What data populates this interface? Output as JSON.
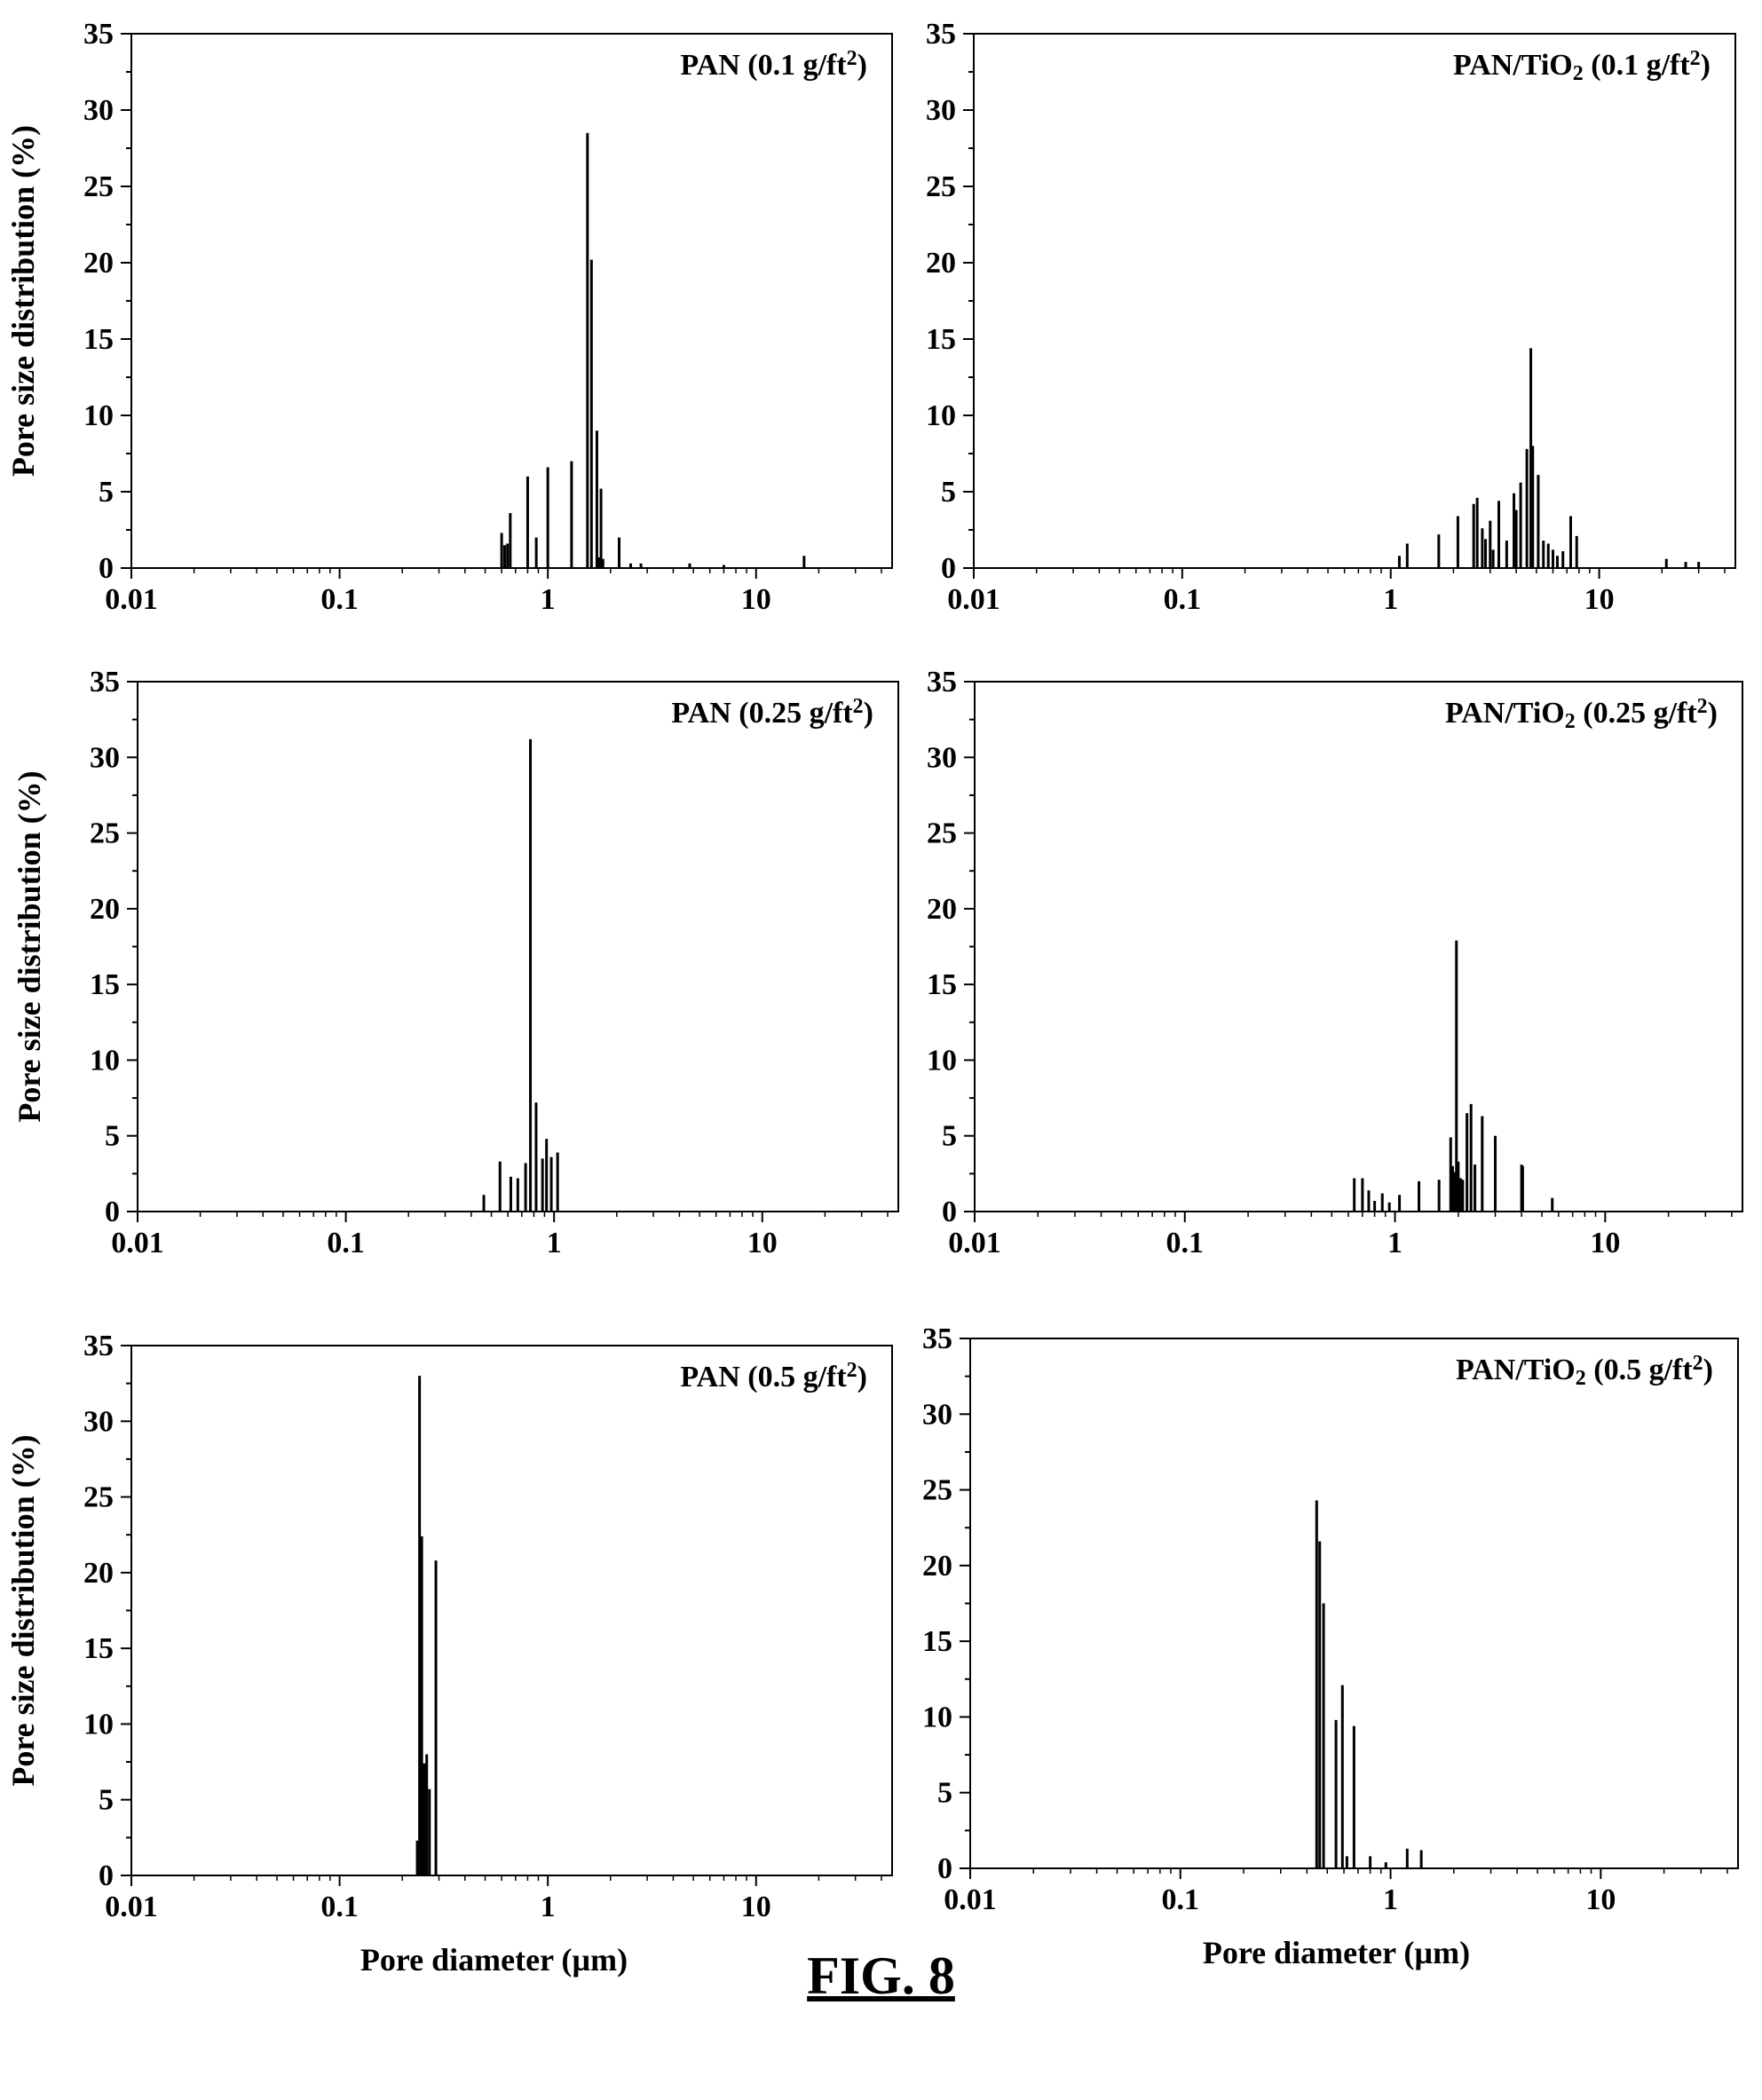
{
  "figure_caption": "FIG. 8",
  "chart_data": [
    {
      "type": "bar",
      "title": "PAN (0.1 g/ft²)",
      "title_parts": [
        "PAN (0.1 g/ft",
        "2",
        ")"
      ],
      "xlabel": "",
      "ylabel": "Pore size distribution (%)",
      "x_scale": "log",
      "xlim": [
        0.01,
        45
      ],
      "ylim": [
        0,
        35
      ],
      "yticks": [
        "0",
        "5",
        "10",
        "15",
        "20",
        "25",
        "30",
        "35"
      ],
      "xticks": [
        "0.01",
        "0.1",
        "1",
        "10"
      ],
      "bar_color": "#000000",
      "grid": false,
      "x": [
        0.6,
        0.62,
        0.64,
        0.66,
        0.8,
        0.88,
        1.0,
        1.3,
        1.55,
        1.62,
        1.72,
        1.76,
        1.8,
        1.84,
        2.2,
        2.5,
        2.8,
        4.8,
        7,
        17
      ],
      "values": [
        2.3,
        1.5,
        1.6,
        3.6,
        6,
        2,
        6.6,
        7,
        28.5,
        20.2,
        9,
        0.7,
        5.2,
        0.6,
        2,
        0.3,
        0.3,
        0.3,
        0.2,
        0.8
      ]
    },
    {
      "type": "bar",
      "title": "PAN/TiO₂ (0.1 g/ft²)",
      "title_parts": [
        "PAN/TiO",
        "2",
        " (0.1 g/ft",
        "2",
        ")"
      ],
      "xlabel": "",
      "ylabel": "",
      "x_scale": "log",
      "xlim": [
        0.01,
        45
      ],
      "ylim": [
        0,
        35
      ],
      "yticks": [
        "0",
        "5",
        "10",
        "15",
        "20",
        "25",
        "30",
        "35"
      ],
      "xticks": [
        "0.01",
        "0.1",
        "1",
        "10"
      ],
      "bar_color": "#000000",
      "grid": false,
      "x": [
        1.1,
        1.2,
        1.7,
        2.1,
        2.5,
        2.6,
        2.75,
        2.85,
        3.0,
        3.1,
        3.3,
        3.6,
        3.9,
        4.0,
        4.2,
        4.5,
        4.7,
        4.8,
        5.1,
        5.4,
        5.7,
        6.0,
        6.3,
        6.7,
        7.3,
        7.8,
        21,
        26,
        30
      ],
      "values": [
        0.8,
        1.6,
        2.2,
        3.4,
        4.2,
        4.6,
        2.6,
        1.9,
        3.1,
        1.2,
        4.4,
        1.8,
        4.9,
        3.8,
        5.6,
        7.8,
        14.4,
        8.0,
        6.1,
        1.8,
        1.6,
        1.2,
        0.8,
        1.1,
        3.4,
        2.1,
        0.6,
        0.4,
        0.4
      ]
    },
    {
      "type": "bar",
      "title": "PAN (0.25 g/ft²)",
      "title_parts": [
        "PAN (0.25 g/ft",
        "2",
        ")"
      ],
      "xlabel": "",
      "ylabel": "Pore size distribution (%)",
      "x_scale": "log",
      "xlim": [
        0.01,
        45
      ],
      "ylim": [
        0,
        35
      ],
      "yticks": [
        "0",
        "5",
        "10",
        "15",
        "20",
        "25",
        "30",
        "35"
      ],
      "xticks": [
        "0.01",
        "0.1",
        "1",
        "10"
      ],
      "bar_color": "#000000",
      "grid": false,
      "x": [
        0.46,
        0.55,
        0.62,
        0.67,
        0.73,
        0.77,
        0.82,
        0.88,
        0.92,
        0.97,
        1.04
      ],
      "values": [
        1.1,
        3.3,
        2.3,
        2.2,
        3.2,
        31.2,
        7.2,
        3.5,
        4.8,
        3.6,
        3.9
      ]
    },
    {
      "type": "bar",
      "title": "PAN/TiO₂ (0.25 g/ft²)",
      "title_parts": [
        "PAN/TiO",
        "2",
        " (0.25 g/ft",
        "2",
        ")"
      ],
      "xlabel": "",
      "ylabel": "",
      "x_scale": "log",
      "xlim": [
        0.01,
        45
      ],
      "ylim": [
        0,
        35
      ],
      "yticks": [
        "0",
        "5",
        "10",
        "15",
        "20",
        "25",
        "30",
        "35"
      ],
      "xticks": [
        "0.01",
        "0.1",
        "1",
        "10"
      ],
      "bar_color": "#000000",
      "grid": false,
      "x": [
        0.64,
        0.7,
        0.75,
        0.8,
        0.87,
        0.94,
        1.05,
        1.3,
        1.62,
        1.84,
        1.88,
        1.92,
        1.96,
        2.0,
        2.05,
        2.1,
        2.2,
        2.3,
        2.4,
        2.6,
        3.0,
        4.0,
        4.05,
        5.6
      ],
      "values": [
        2.2,
        2.2,
        1.4,
        0.7,
        1.2,
        0.6,
        1.1,
        2.0,
        2.1,
        4.9,
        3.0,
        2.6,
        17.9,
        3.3,
        2.2,
        2.1,
        6.5,
        7.1,
        3.1,
        6.3,
        5.0,
        3.1,
        3.0,
        0.9
      ]
    },
    {
      "type": "bar",
      "title": "PAN (0.5 g/ft²)",
      "title_parts": [
        "PAN (0.5 g/ft",
        "2",
        ")"
      ],
      "xlabel": "Pore diameter (µm)",
      "ylabel": "Pore size distribution (%)",
      "x_scale": "log",
      "xlim": [
        0.01,
        45
      ],
      "ylim": [
        0,
        35
      ],
      "yticks": [
        "0",
        "5",
        "10",
        "15",
        "20",
        "25",
        "30",
        "35"
      ],
      "xticks": [
        "0.01",
        "0.1",
        "1",
        "10"
      ],
      "bar_color": "#000000",
      "grid": false,
      "x": [
        0.236,
        0.242,
        0.248,
        0.255,
        0.262,
        0.27,
        0.29
      ],
      "values": [
        2.3,
        33,
        22.4,
        7.4,
        8,
        5.7,
        20.8
      ]
    },
    {
      "type": "bar",
      "title": "PAN/TiO₂ (0.5 g/ft²)",
      "title_parts": [
        "PAN/TiO",
        "2",
        " (0.5 g/ft",
        "2",
        ")"
      ],
      "xlabel": "Pore diameter (µm)",
      "ylabel": "",
      "x_scale": "log",
      "xlim": [
        0.01,
        45
      ],
      "ylim": [
        0,
        35
      ],
      "yticks": [
        "0",
        "5",
        "10",
        "15",
        "20",
        "25",
        "30",
        "35"
      ],
      "xticks": [
        "0.01",
        "0.1",
        "1",
        "10"
      ],
      "bar_color": "#000000",
      "grid": false,
      "x": [
        0.445,
        0.46,
        0.48,
        0.55,
        0.59,
        0.62,
        0.67,
        0.8,
        0.95,
        1.2,
        1.4
      ],
      "values": [
        24.3,
        21.6,
        17.5,
        9.8,
        12.1,
        0.8,
        9.4,
        0.8,
        0.4,
        1.3,
        1.2
      ]
    }
  ]
}
